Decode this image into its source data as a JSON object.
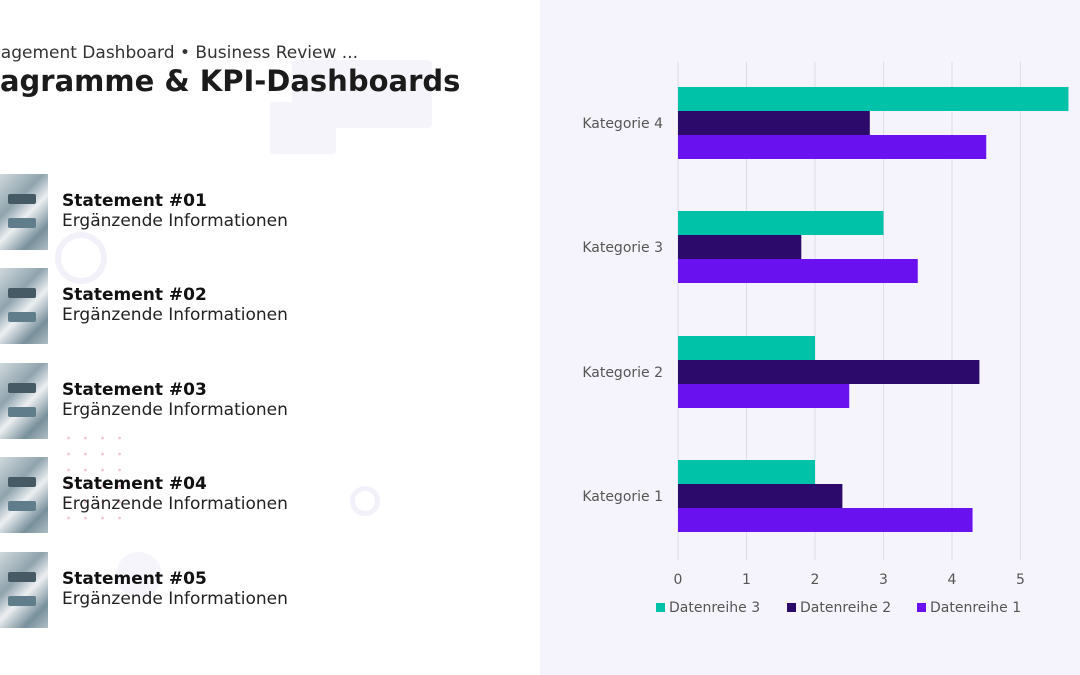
{
  "header": {
    "subtitle": "nagement Dashboard • Business Review ...",
    "title": "iagramme & KPI-Dashboards"
  },
  "statements": [
    {
      "title": "Statement #01",
      "subtitle": "Ergänzende Informationen"
    },
    {
      "title": "Statement #02",
      "subtitle": "Ergänzende Informationen"
    },
    {
      "title": "Statement #03",
      "subtitle": "Ergänzende Informationen"
    },
    {
      "title": "Statement #04",
      "subtitle": "Ergänzende Informationen"
    },
    {
      "title": "Statement #05",
      "subtitle": "Ergänzende Informationen"
    }
  ],
  "colors": {
    "panel_background": "#f5f4fc",
    "datenreihe_3": "#00c2a8",
    "datenreihe_2": "#2b0a6b",
    "datenreihe_1": "#6a11f0"
  },
  "chart_data": {
    "type": "bar",
    "orientation": "horizontal",
    "categories": [
      "Kategorie 1",
      "Kategorie 2",
      "Kategorie 3",
      "Kategorie 4"
    ],
    "series": [
      {
        "name": "Datenreihe 3",
        "values": [
          2.0,
          2.0,
          3.0,
          5.7
        ]
      },
      {
        "name": "Datenreihe 2",
        "values": [
          2.4,
          4.4,
          1.8,
          2.8
        ]
      },
      {
        "name": "Datenreihe 1",
        "values": [
          4.3,
          2.5,
          3.5,
          4.5
        ]
      }
    ],
    "xlim": [
      0,
      5.7
    ],
    "xticks": [
      "0",
      "1",
      "2",
      "3",
      "4",
      "5"
    ],
    "grid": true,
    "legend_position": "bottom",
    "title": "",
    "xlabel": "",
    "ylabel": ""
  }
}
